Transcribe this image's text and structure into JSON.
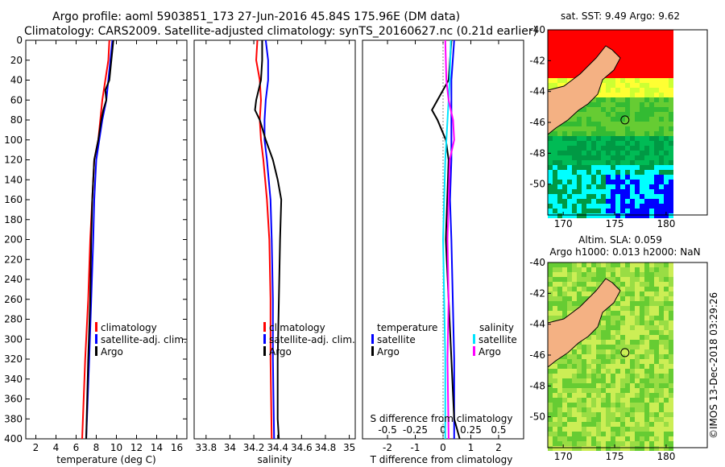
{
  "figure": {
    "title_line1": "Argo profile: aoml 5903851_173 27-Jun-2016 45.84S 175.96E (DM data)",
    "title_line2": "Climatology: CARS2009. Satellite-adjusted climatology: synTS_20160627.nc (0.21d earlier)",
    "footer": "©IMOS 13-Dec-2018 03:29:26"
  },
  "colors": {
    "climatology": "#ff0000",
    "satellite_adj": "#0000ff",
    "argo": "#000000",
    "sal_sat": "#00e5ff",
    "sal_argo": "#ff00ff",
    "land": "#f4b183"
  },
  "chart_data": [
    {
      "id": "temperature",
      "type": "line",
      "xlabel": "temperature (deg C)",
      "ylabel": "",
      "xlim": [
        1,
        17
      ],
      "ylim": [
        400,
        0
      ],
      "xticks": [
        2,
        4,
        6,
        8,
        10,
        12,
        14,
        16
      ],
      "yticks": [
        0,
        20,
        40,
        60,
        80,
        100,
        120,
        140,
        160,
        180,
        200,
        220,
        240,
        260,
        280,
        300,
        320,
        340,
        360,
        380,
        400
      ],
      "legend": [
        "climatology",
        "satellite-adj. clim.",
        "Argo"
      ],
      "series": [
        {
          "name": "climatology",
          "color": "#ff0000",
          "y": [
            0,
            20,
            40,
            60,
            80,
            100,
            120,
            160,
            200,
            260,
            320,
            400
          ],
          "x": [
            9.3,
            9.2,
            8.9,
            8.6,
            8.4,
            8.2,
            7.8,
            7.6,
            7.4,
            7.2,
            6.9,
            6.6
          ]
        },
        {
          "name": "satellite-adj. clim.",
          "color": "#0000ff",
          "y": [
            0,
            20,
            40,
            60,
            80,
            100,
            120,
            160,
            200,
            260,
            320,
            400
          ],
          "x": [
            9.6,
            9.4,
            9.2,
            9.0,
            8.6,
            8.3,
            8.0,
            7.8,
            7.7,
            7.5,
            7.3,
            7.0
          ]
        },
        {
          "name": "Argo",
          "color": "#000000",
          "y": [
            0,
            20,
            40,
            50,
            60,
            70,
            80,
            100,
            120,
            160,
            200,
            260,
            320,
            400
          ],
          "x": [
            9.7,
            9.5,
            9.3,
            8.9,
            9.0,
            8.7,
            8.5,
            8.2,
            7.8,
            7.6,
            7.5,
            7.4,
            7.2,
            7.0
          ]
        }
      ]
    },
    {
      "id": "salinity",
      "type": "line",
      "xlabel": "salinity",
      "xlim": [
        33.7,
        35.05
      ],
      "ylim": [
        400,
        0
      ],
      "xticks": [
        33.8,
        34,
        34.2,
        34.4,
        34.6,
        34.8,
        35
      ],
      "xticklabels": [
        "33.8",
        "34",
        "34.2",
        "34.4",
        "34.6",
        "34.8",
        "35"
      ],
      "legend": [
        "climatology",
        "satellite-adj. clim.",
        "Argo"
      ],
      "series": [
        {
          "name": "climatology",
          "color": "#ff0000",
          "y": [
            0,
            20,
            40,
            60,
            80,
            100,
            120,
            160,
            200,
            260,
            320,
            400
          ],
          "x": [
            34.23,
            34.22,
            34.25,
            34.26,
            34.25,
            34.26,
            34.28,
            34.31,
            34.33,
            34.34,
            34.34,
            34.35
          ]
        },
        {
          "name": "satellite-adj. clim.",
          "color": "#0000ff",
          "y": [
            0,
            20,
            40,
            60,
            80,
            100,
            120,
            160,
            200,
            260,
            320,
            400
          ],
          "x": [
            34.3,
            34.32,
            34.32,
            34.3,
            34.29,
            34.29,
            34.31,
            34.34,
            34.35,
            34.36,
            34.36,
            34.37
          ]
        },
        {
          "name": "Argo",
          "color": "#000000",
          "y": [
            0,
            20,
            40,
            60,
            70,
            80,
            100,
            120,
            140,
            160,
            200,
            260,
            320,
            380,
            400
          ],
          "x": [
            34.27,
            34.27,
            34.26,
            34.22,
            34.21,
            34.25,
            34.3,
            34.36,
            34.4,
            34.43,
            34.42,
            34.41,
            34.4,
            34.4,
            34.41
          ]
        }
      ]
    },
    {
      "id": "difference",
      "type": "line",
      "xlabel": "T difference from climatology",
      "xlabel2": "S difference from climatology",
      "xlim": [
        -2.9,
        2.9
      ],
      "ylim": [
        400,
        0
      ],
      "xticks": [
        -2,
        -1,
        0,
        1,
        2
      ],
      "xticks_top_values": [
        -0.5,
        -0.25,
        0,
        0.25,
        0.5
      ],
      "xticks_top_labels": [
        "-0.5",
        "-0.25",
        "0",
        "0.25",
        "0.5"
      ],
      "legend_temperature": {
        "title": "temperature",
        "items": [
          "satellite",
          "Argo"
        ]
      },
      "legend_salinity": {
        "title": "salinity",
        "items": [
          "satellite",
          "Argo"
        ]
      },
      "series": [
        {
          "name": "T satellite",
          "color": "#0000ff",
          "y": [
            0,
            40,
            80,
            120,
            160,
            200,
            260,
            320,
            400
          ],
          "x": [
            0.4,
            0.3,
            0.3,
            0.3,
            0.25,
            0.3,
            0.35,
            0.4,
            0.4
          ]
        },
        {
          "name": "T Argo",
          "color": "#000000",
          "y": [
            0,
            40,
            50,
            60,
            70,
            80,
            100,
            120,
            200,
            260,
            320,
            380,
            400
          ],
          "x": [
            0.3,
            0.2,
            0.0,
            -0.2,
            -0.4,
            -0.2,
            0.1,
            0.2,
            0.1,
            0.2,
            0.3,
            0.4,
            0.6
          ]
        },
        {
          "name": "S satellite",
          "color": "#00e5ff",
          "y": [
            0,
            40,
            80,
            120,
            200,
            260,
            320,
            400
          ],
          "x": [
            0.07,
            0.06,
            0.04,
            0.02,
            0.0,
            0.01,
            0.02,
            0.02
          ]
        },
        {
          "name": "S Argo",
          "color": "#ff00ff",
          "y": [
            0,
            40,
            60,
            80,
            100,
            120,
            160,
            200,
            260,
            320,
            400
          ],
          "x": [
            0.02,
            0.03,
            0.05,
            0.09,
            0.1,
            0.06,
            0.05,
            0.04,
            0.05,
            0.04,
            0.05
          ]
        }
      ]
    },
    {
      "id": "map_sst",
      "type": "heatmap",
      "title": "sat. SST: 9.49 Argo: 9.62",
      "xticks": [
        170,
        175,
        180
      ],
      "yticks": [
        -40,
        -42,
        -44,
        -46,
        -48,
        -50
      ],
      "xlim": [
        168.5,
        184
      ],
      "ylim": [
        -52,
        -40
      ]
    },
    {
      "id": "map_sla",
      "type": "heatmap",
      "title_line1": "Altim. SLA: 0.059",
      "title_line2": "Argo h1000: 0.013 h2000: NaN",
      "xticks": [
        170,
        175,
        180
      ],
      "yticks": [
        -40,
        -42,
        -44,
        -46,
        -48,
        -50
      ],
      "xlim": [
        168.5,
        184
      ],
      "ylim": [
        -52,
        -40
      ]
    }
  ]
}
